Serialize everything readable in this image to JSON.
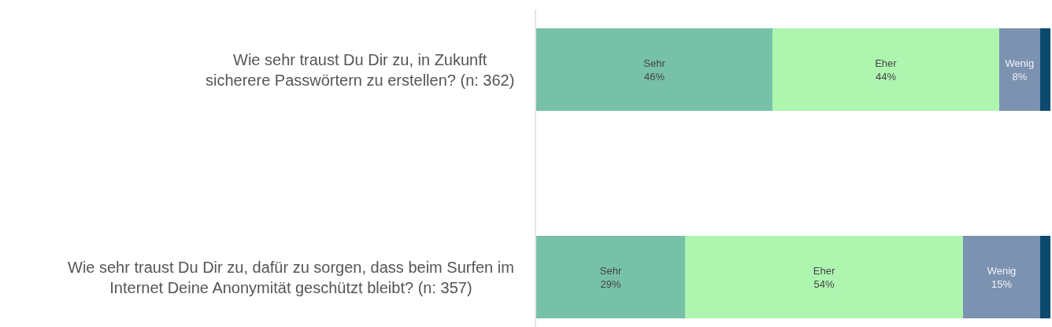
{
  "chart_data": {
    "type": "bar",
    "orientation": "horizontal",
    "stacked": true,
    "categories": [
      "Wie sehr traust Du Dir zu, in Zukunft\nsicherere Passwörtern zu erstellen? (n: 362)",
      "Wie sehr traust Du Dir zu, dafür zu sorgen, dass beim Surfen im\nInternet Deine Anonymität geschützt bleibt? (n: 357)"
    ],
    "series": [
      {
        "name": "Sehr",
        "color": "#76c1a8",
        "values": [
          46,
          29
        ],
        "value_labels": [
          "46%",
          "29%"
        ]
      },
      {
        "name": "Eher",
        "color": "#aef5b0",
        "values": [
          44,
          54
        ],
        "value_labels": [
          "44%",
          "54%"
        ]
      },
      {
        "name": "Wenig",
        "color": "#7b92b0",
        "values": [
          8,
          15
        ],
        "value_labels": [
          "8%",
          "15%"
        ]
      },
      {
        "color": "#0c4a6e",
        "values": [
          2,
          2
        ]
      }
    ],
    "xlim": [
      0,
      100
    ],
    "tick_labels": "y",
    "legend": false
  }
}
